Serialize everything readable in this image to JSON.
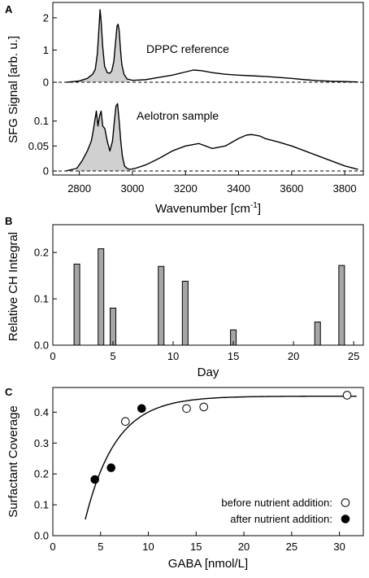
{
  "panels": {
    "a_label": "A",
    "b_label": "B",
    "c_label": "C"
  },
  "chart_data": [
    {
      "panel": "A",
      "type": "line",
      "xlabel": "Wavenumber [cm",
      "xlabel_sup": "-1",
      "xlabel_end": "]",
      "ylabel": "SFG Signal [arb. u.]",
      "xlim": [
        2700,
        3870
      ],
      "xticks": [
        2800,
        3000,
        3200,
        3400,
        3600,
        3800
      ],
      "shaded_region": [
        2790,
        2990
      ],
      "series": [
        {
          "name": "DPPC reference",
          "ylim": [
            -0.1,
            2.35
          ],
          "yticks": [
            0,
            1,
            2
          ],
          "x": [
            2750,
            2800,
            2830,
            2850,
            2860,
            2868,
            2874,
            2878,
            2882,
            2888,
            2895,
            2905,
            2915,
            2922,
            2930,
            2937,
            2942,
            2946,
            2950,
            2955,
            2960,
            2968,
            2980,
            3000,
            3050,
            3100,
            3150,
            3200,
            3230,
            3260,
            3300,
            3350,
            3400,
            3450,
            3500,
            3550,
            3600,
            3650,
            3700,
            3750,
            3800,
            3850
          ],
          "y": [
            0.0,
            0.04,
            0.12,
            0.25,
            0.4,
            0.9,
            1.7,
            2.25,
            1.9,
            1.1,
            0.5,
            0.3,
            0.28,
            0.35,
            0.65,
            1.3,
            1.75,
            1.8,
            1.6,
            1.0,
            0.55,
            0.25,
            0.1,
            0.06,
            0.08,
            0.15,
            0.22,
            0.32,
            0.38,
            0.36,
            0.3,
            0.25,
            0.22,
            0.2,
            0.18,
            0.15,
            0.12,
            0.08,
            0.05,
            0.03,
            0.02,
            0.01
          ],
          "baseline": 0
        },
        {
          "name": "Aelotron sample",
          "ylim": [
            -0.005,
            0.16
          ],
          "yticks": [
            0,
            0.05,
            0.1
          ],
          "x": [
            2750,
            2790,
            2810,
            2830,
            2845,
            2852,
            2858,
            2864,
            2870,
            2876,
            2882,
            2888,
            2896,
            2905,
            2915,
            2925,
            2932,
            2938,
            2944,
            2950,
            2956,
            2962,
            2970,
            2980,
            2990,
            3010,
            3050,
            3100,
            3150,
            3200,
            3250,
            3300,
            3350,
            3400,
            3430,
            3450,
            3480,
            3500,
            3550,
            3600,
            3650,
            3700,
            3750,
            3800,
            3850
          ],
          "y": [
            0.0,
            0.005,
            0.02,
            0.04,
            0.06,
            0.08,
            0.1,
            0.12,
            0.09,
            0.11,
            0.12,
            0.09,
            0.085,
            0.06,
            0.04,
            0.06,
            0.1,
            0.13,
            0.135,
            0.1,
            0.06,
            0.03,
            0.01,
            0.005,
            0.003,
            0.005,
            0.012,
            0.025,
            0.04,
            0.05,
            0.055,
            0.045,
            0.05,
            0.065,
            0.072,
            0.073,
            0.07,
            0.065,
            0.058,
            0.05,
            0.04,
            0.03,
            0.02,
            0.01,
            0.003
          ],
          "baseline": 0
        }
      ]
    },
    {
      "panel": "B",
      "type": "bar",
      "xlabel": "Day",
      "ylabel": "Relative CH Integral",
      "xlim": [
        0,
        25.8
      ],
      "ylim": [
        0,
        0.26
      ],
      "xticks": [
        0,
        5,
        10,
        15,
        20,
        25
      ],
      "yticks": [
        0.0,
        0.1,
        0.2
      ],
      "ytick_labels": [
        "0.0",
        "0.1",
        "0.2"
      ],
      "x": [
        2,
        4,
        5,
        9,
        11,
        15,
        22,
        24
      ],
      "values": [
        0.175,
        0.208,
        0.08,
        0.17,
        0.138,
        0.033,
        0.05,
        0.172
      ],
      "bar_color": "#a6a6a6"
    },
    {
      "panel": "C",
      "type": "scatter",
      "xlabel": "GABA [nmol/L]",
      "ylabel": "Surfactant Coverage",
      "xlim": [
        0,
        32.5
      ],
      "ylim": [
        0,
        0.48
      ],
      "xticks": [
        0,
        5,
        10,
        15,
        20,
        25,
        30
      ],
      "yticks": [
        0.0,
        0.1,
        0.2,
        0.3,
        0.4
      ],
      "ytick_labels": [
        "0.0",
        "0.1",
        "0.2",
        "0.3",
        "0.4"
      ],
      "series": [
        {
          "name": "before nutrient addition:",
          "marker": "open-circle",
          "x": [
            7.6,
            14.0,
            15.8,
            30.8
          ],
          "y": [
            0.37,
            0.412,
            0.417,
            0.455
          ]
        },
        {
          "name": "after nutrient addition:",
          "marker": "filled-circle",
          "x": [
            4.4,
            6.1,
            9.3
          ],
          "y": [
            0.182,
            0.22,
            0.412
          ]
        }
      ],
      "fit": {
        "model": "saturation",
        "ymax": 0.452,
        "rate": 0.31,
        "x0": 3.0,
        "x_range": [
          3.4,
          31.8
        ]
      }
    }
  ]
}
